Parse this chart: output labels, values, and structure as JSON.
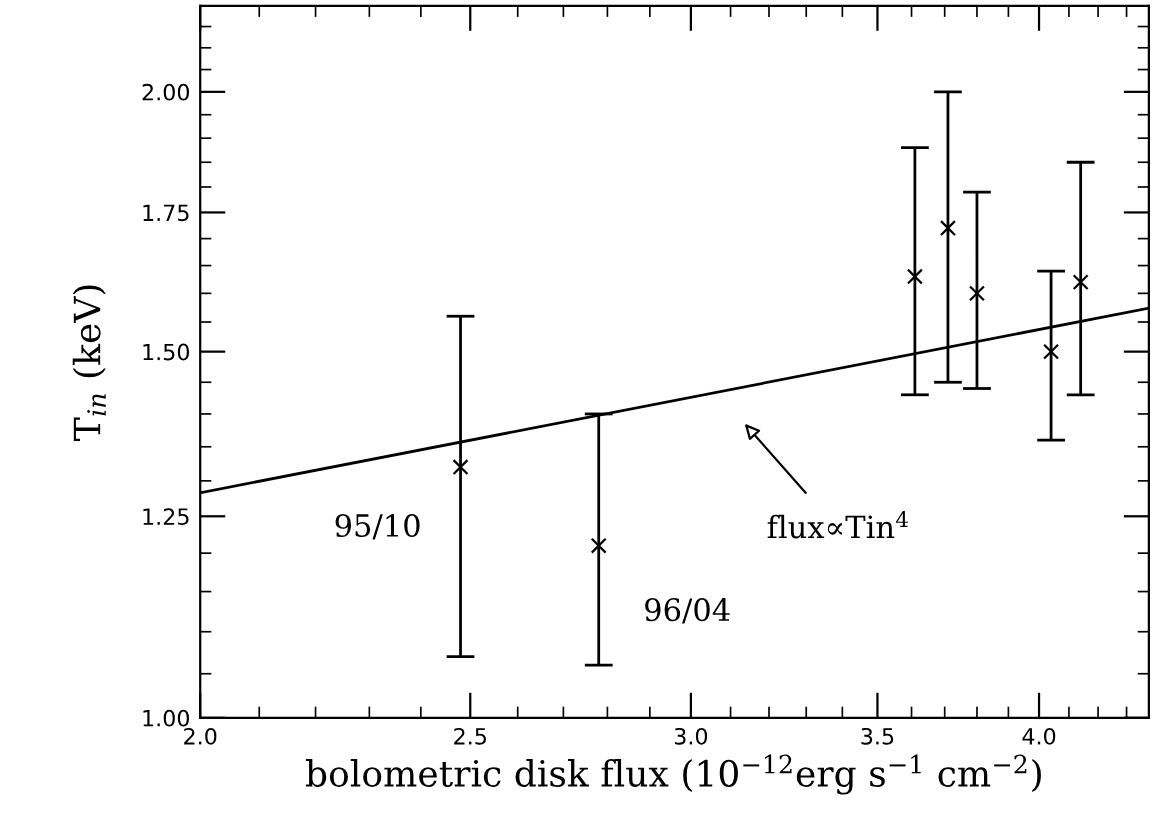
{
  "chart_data": {
    "type": "scatter",
    "xlabel": "bolometric disk flux (10$^{−12}$erg s$^{−1}$ cm$^{−2}$)",
    "ylabel": "T$_{in}$ (keV)",
    "log": "xy",
    "grid": false,
    "xlim": [
      2.0,
      4.38
    ],
    "ylim": [
      1.0,
      2.2
    ],
    "xticks": [
      {
        "value": 2.0,
        "label": "2.0"
      },
      {
        "value": 2.1,
        "label": null
      },
      {
        "value": 2.2,
        "label": null
      },
      {
        "value": 2.3,
        "label": null
      },
      {
        "value": 2.4,
        "label": null
      },
      {
        "value": 2.5,
        "label": "2.5"
      },
      {
        "value": 2.6,
        "label": null
      },
      {
        "value": 2.7,
        "label": null
      },
      {
        "value": 2.8,
        "label": null
      },
      {
        "value": 2.9,
        "label": null
      },
      {
        "value": 3.0,
        "label": "3.0"
      },
      {
        "value": 3.1,
        "label": null
      },
      {
        "value": 3.2,
        "label": null
      },
      {
        "value": 3.3,
        "label": null
      },
      {
        "value": 3.4,
        "label": null
      },
      {
        "value": 3.5,
        "label": "3.5"
      },
      {
        "value": 3.6,
        "label": null
      },
      {
        "value": 3.7,
        "label": null
      },
      {
        "value": 3.8,
        "label": null
      },
      {
        "value": 3.9,
        "label": null
      },
      {
        "value": 4.0,
        "label": "4.0"
      },
      {
        "value": 4.1,
        "label": null
      },
      {
        "value": 4.2,
        "label": null
      },
      {
        "value": 4.3,
        "label": null
      }
    ],
    "yticks": [
      {
        "value": 1.0,
        "label": "1.00"
      },
      {
        "value": 1.05,
        "label": null
      },
      {
        "value": 1.1,
        "label": null
      },
      {
        "value": 1.15,
        "label": null
      },
      {
        "value": 1.2,
        "label": null
      },
      {
        "value": 1.25,
        "label": "1.25"
      },
      {
        "value": 1.3,
        "label": null
      },
      {
        "value": 1.35,
        "label": null
      },
      {
        "value": 1.4,
        "label": null
      },
      {
        "value": 1.45,
        "label": null
      },
      {
        "value": 1.5,
        "label": "1.50"
      },
      {
        "value": 1.55,
        "label": null
      },
      {
        "value": 1.6,
        "label": null
      },
      {
        "value": 1.65,
        "label": null
      },
      {
        "value": 1.7,
        "label": null
      },
      {
        "value": 1.75,
        "label": "1.75"
      },
      {
        "value": 1.8,
        "label": null
      },
      {
        "value": 1.85,
        "label": null
      },
      {
        "value": 1.9,
        "label": null
      },
      {
        "value": 1.95,
        "label": null
      },
      {
        "value": 2.0,
        "label": "2.00"
      },
      {
        "value": 2.05,
        "label": null
      },
      {
        "value": 2.1,
        "label": null
      },
      {
        "value": 2.15,
        "label": null
      }
    ],
    "series": [
      {
        "marker": "cross",
        "color": "#000000",
        "x": [
          2.48,
          2.78,
          3.61,
          3.71,
          3.8,
          4.04,
          4.14
        ],
        "values": [
          1.32,
          1.21,
          1.63,
          1.72,
          1.6,
          1.5,
          1.62
        ],
        "errors": [
          [
            1.07,
            1.56
          ],
          [
            1.06,
            1.4
          ],
          [
            1.43,
            1.88
          ],
          [
            1.45,
            2.0
          ],
          [
            1.44,
            1.79
          ],
          [
            1.36,
            1.64
          ],
          [
            1.43,
            1.85
          ]
        ]
      },
      {
        "type": "line",
        "color": "#000000",
        "line_style": "solid",
        "x": [
          2.0,
          4.38
        ],
        "values": [
          1.283,
          1.574
        ]
      }
    ],
    "annotations": [
      {
        "text": "95/10",
        "x": 2.48,
        "y": 1.32
      },
      {
        "text": "96/04",
        "x": 2.78,
        "y": 1.21
      },
      "flux∝Tin$^{4}$"
    ]
  }
}
